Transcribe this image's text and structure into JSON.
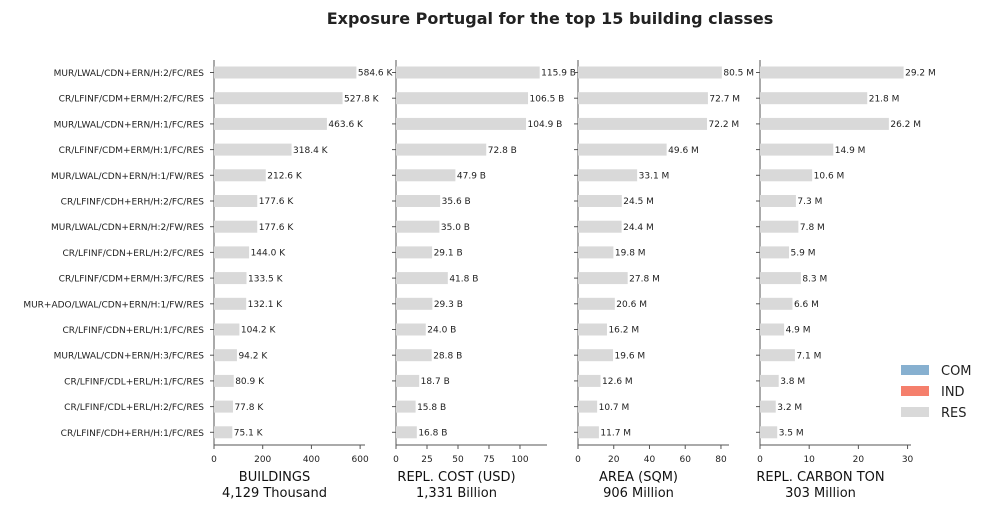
{
  "chart_data": {
    "type": "bar",
    "orientation": "horizontal",
    "title": "Exposure Portugal for the top 15 building classes",
    "categories": [
      "MUR/LWAL/CDN+ERN/H:2/FC/RES",
      "CR/LFINF/CDM+ERM/H:2/FC/RES",
      "MUR/LWAL/CDN+ERN/H:1/FC/RES",
      "CR/LFINF/CDM+ERM/H:1/FC/RES",
      "MUR/LWAL/CDN+ERN/H:1/FW/RES",
      "CR/LFINF/CDH+ERH/H:2/FC/RES",
      "MUR/LWAL/CDN+ERN/H:2/FW/RES",
      "CR/LFINF/CDN+ERL/H:2/FC/RES",
      "CR/LFINF/CDM+ERM/H:3/FC/RES",
      "MUR+ADO/LWAL/CDN+ERN/H:1/FW/RES",
      "CR/LFINF/CDN+ERL/H:1/FC/RES",
      "MUR/LWAL/CDN+ERN/H:3/FC/RES",
      "CR/LFINF/CDL+ERL/H:1/FC/RES",
      "CR/LFINF/CDL+ERL/H:2/FC/RES",
      "CR/LFINF/CDH+ERH/H:1/FC/RES"
    ],
    "panels": [
      {
        "xlabel": "BUILDINGS",
        "subtitle": "4,129 Thousand",
        "xlim": [
          0,
          620
        ],
        "ticks": [
          0,
          200,
          400,
          600
        ],
        "values": [
          584.6,
          527.8,
          463.6,
          318.4,
          212.6,
          177.6,
          177.6,
          144.0,
          133.5,
          132.1,
          104.2,
          94.2,
          80.9,
          77.8,
          75.1
        ],
        "labels": [
          "584.6 K",
          "527.8 K",
          "463.6 K",
          "318.4 K",
          "212.6 K",
          "177.6 K",
          "177.6 K",
          "144.0 K",
          "133.5 K",
          "132.1 K",
          "104.2 K",
          "94.2 K",
          "80.9 K",
          "77.8 K",
          "75.1 K"
        ]
      },
      {
        "xlabel": "REPL. COST (USD)",
        "subtitle": "1,331 Billion",
        "xlim": [
          0,
          121.8
        ],
        "ticks": [
          0,
          25,
          50,
          75,
          100
        ],
        "values": [
          115.9,
          106.5,
          104.9,
          72.8,
          47.9,
          35.6,
          35.0,
          29.1,
          41.8,
          29.3,
          24.0,
          28.8,
          18.7,
          15.8,
          16.8
        ],
        "labels": [
          "115.9 B",
          "106.5 B",
          "104.9 B",
          "72.8 B",
          "47.9 B",
          "35.6 B",
          "35.0 B",
          "29.1 B",
          "41.8 B",
          "29.3 B",
          "24.0 B",
          "28.8 B",
          "18.7 B",
          "15.8 B",
          "16.8 B"
        ]
      },
      {
        "xlabel": "AREA (SQM)",
        "subtitle": "906 Million",
        "xlim": [
          0,
          84.5
        ],
        "ticks": [
          0,
          20,
          40,
          60,
          80
        ],
        "values": [
          80.5,
          72.7,
          72.2,
          49.6,
          33.1,
          24.5,
          24.4,
          19.8,
          27.8,
          20.6,
          16.2,
          19.6,
          12.6,
          10.7,
          11.7
        ],
        "labels": [
          "80.5 M",
          "72.7 M",
          "72.2 M",
          "49.6 M",
          "33.1 M",
          "24.5 M",
          "24.4 M",
          "19.8 M",
          "27.8 M",
          "20.6 M",
          "16.2 M",
          "19.6 M",
          "12.6 M",
          "10.7 M",
          "11.7 M"
        ]
      },
      {
        "xlabel": "REPL. CARBON TON",
        "subtitle": "303 Million",
        "xlim": [
          0,
          30.7
        ],
        "ticks": [
          0,
          10,
          20,
          30
        ],
        "values": [
          29.2,
          21.8,
          26.2,
          14.9,
          10.6,
          7.3,
          7.8,
          5.9,
          8.3,
          6.6,
          4.9,
          7.1,
          3.8,
          3.2,
          3.5
        ],
        "labels": [
          "29.2 M",
          "21.8 M",
          "26.2 M",
          "14.9 M",
          "10.6 M",
          "7.3 M",
          "7.8 M",
          "5.9 M",
          "8.3 M",
          "6.6 M",
          "4.9 M",
          "7.1 M",
          "3.8 M",
          "3.2 M",
          "3.5 M"
        ]
      }
    ],
    "legend": {
      "placement": "lower-right",
      "entries": [
        {
          "name": "COM",
          "color": "#87b0d0"
        },
        {
          "name": "IND",
          "color": "#f57f6c"
        },
        {
          "name": "RES",
          "color": "#d9d9d9"
        }
      ]
    },
    "bar_color": "#d9d9d9",
    "axis_color": "#555555",
    "grid": false
  }
}
